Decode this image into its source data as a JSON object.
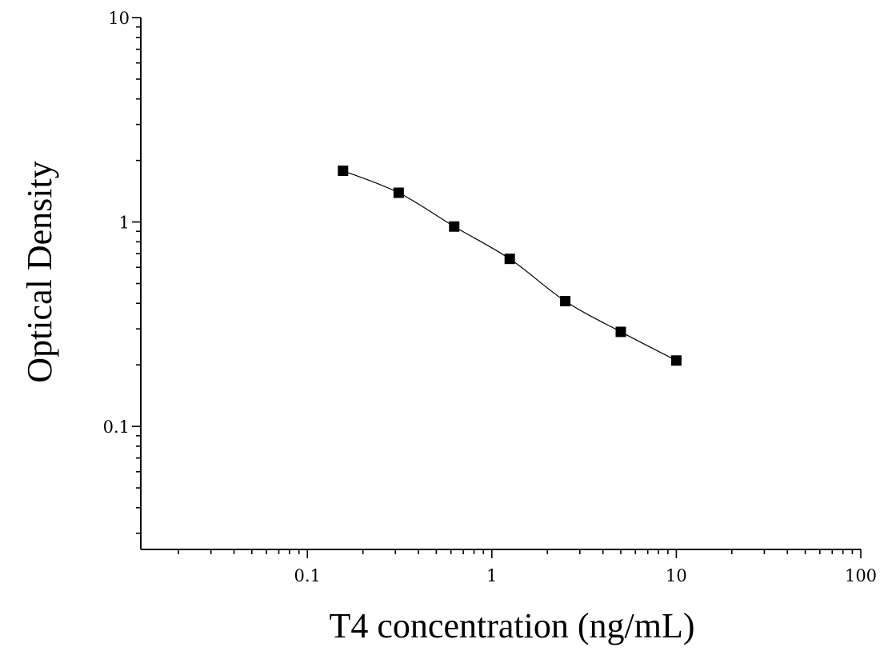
{
  "chart_data": {
    "type": "scatter",
    "xlabel": "T4 concentration (ng/mL)",
    "ylabel": "Optical Density",
    "x_scale": "log",
    "y_scale": "log",
    "xlim": [
      0.0125,
      100
    ],
    "ylim": [
      0.025,
      10
    ],
    "x_tick_labels": [
      "0.1",
      "1",
      "10",
      "100"
    ],
    "y_tick_labels": [
      "0.1",
      "1",
      "10"
    ],
    "x_tick_values": [
      0.1,
      1,
      10,
      100
    ],
    "y_tick_values": [
      0.1,
      1,
      10
    ],
    "grid": false,
    "series": [
      {
        "marker": "square",
        "color": "#000000",
        "fit_curve": true,
        "x": [
          0.156,
          0.3125,
          0.625,
          1.25,
          2.5,
          5,
          10
        ],
        "y": [
          1.78,
          1.39,
          0.95,
          0.66,
          0.41,
          0.29,
          0.21
        ]
      }
    ]
  }
}
